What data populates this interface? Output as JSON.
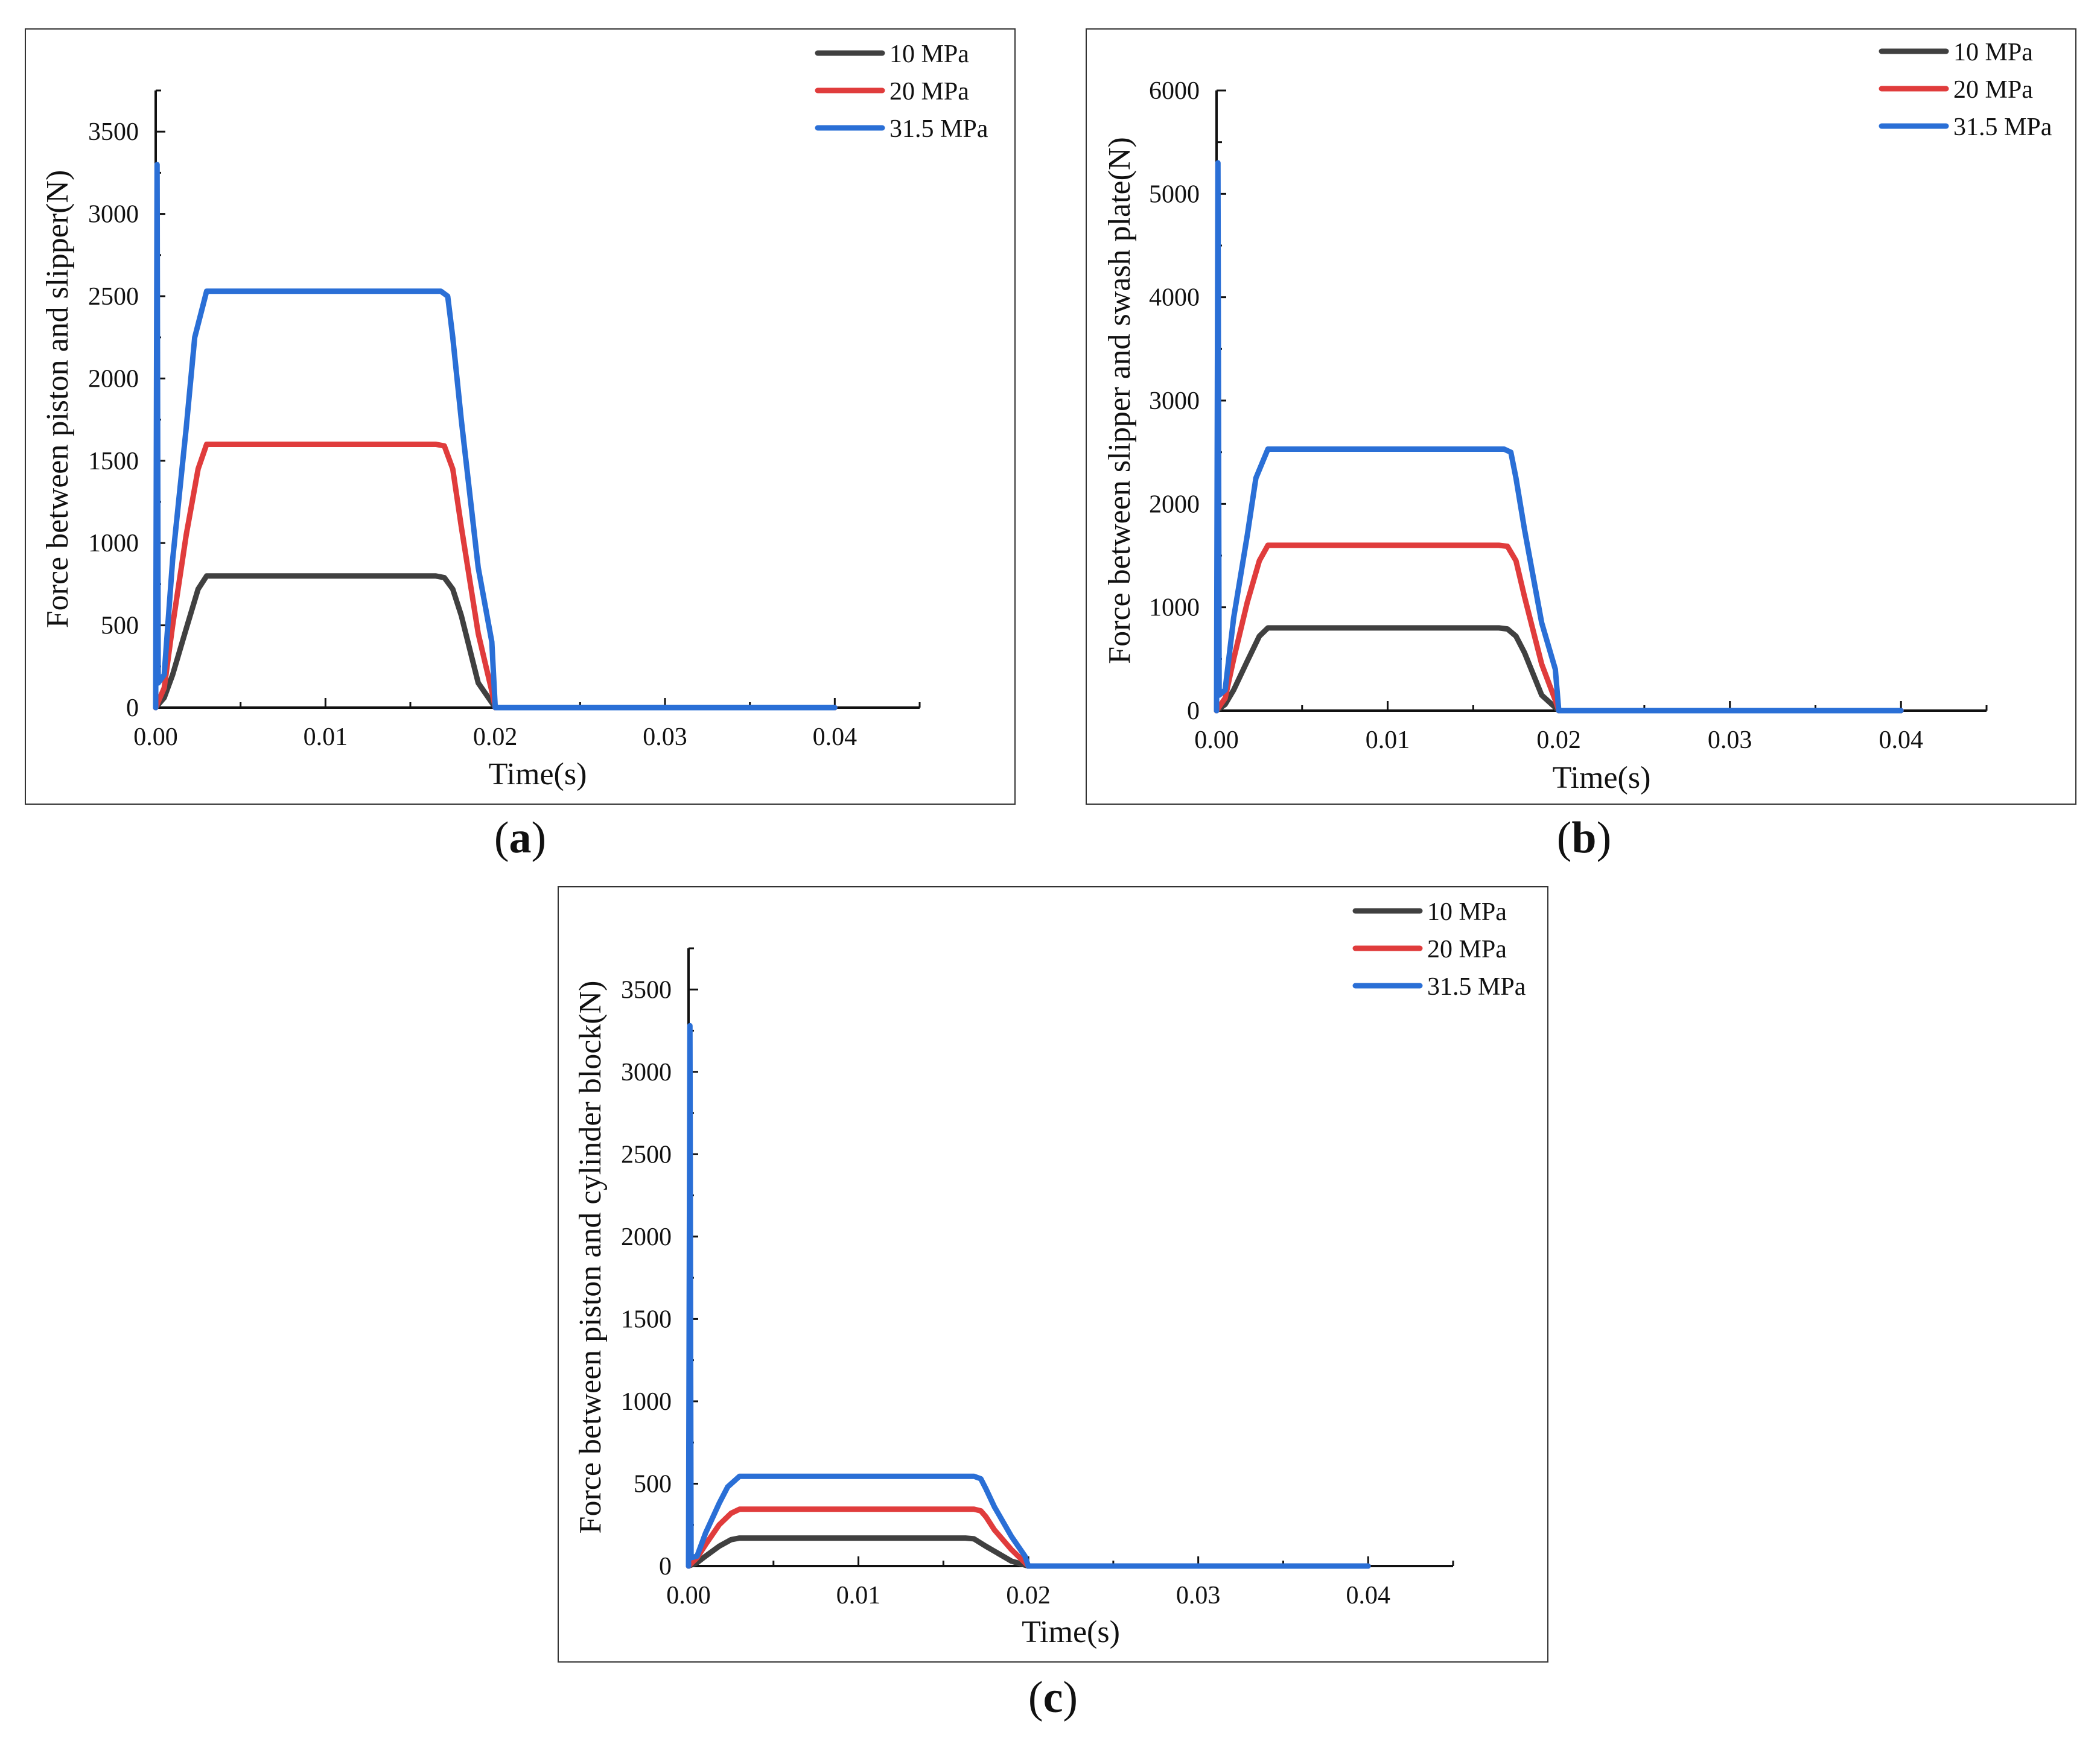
{
  "colors": {
    "10 MPa": "#404040",
    "20 MPa": "#e03c3c",
    "31.5 MPa": "#2a6fd6",
    "axis": "#111111",
    "frame": "#333333"
  },
  "chart_data": [
    {
      "panel": "a",
      "caption": {
        "open": "(",
        "letter": "a",
        "close": ")"
      },
      "type": "line",
      "title": "",
      "xlabel": "Time(s)",
      "ylabel": "Force between piston and slipper(N)",
      "xlim": [
        0,
        0.045
      ],
      "ylim": [
        0,
        3750
      ],
      "xticks": [
        0.0,
        0.01,
        0.02,
        0.03,
        0.04
      ],
      "xtick_labels": [
        "0.00",
        "0.01",
        "0.02",
        "0.03",
        "0.04"
      ],
      "yticks": [
        0,
        500,
        1000,
        1500,
        2000,
        2500,
        3000,
        3500
      ],
      "ytick_labels": [
        "0",
        "500",
        "1000",
        "1500",
        "2000",
        "2500",
        "3000",
        "3500"
      ],
      "legend": [
        "10 MPa",
        "20 MPa",
        "31.5 MPa"
      ],
      "legend_position": "top-right",
      "series": [
        {
          "name": "10 MPa",
          "x": [
            0,
            0.0005,
            0.001,
            0.0018,
            0.0025,
            0.003,
            0.005,
            0.0165,
            0.017,
            0.0175,
            0.018,
            0.019,
            0.02,
            0.04
          ],
          "y": [
            0,
            60,
            200,
            480,
            720,
            800,
            800,
            800,
            790,
            720,
            560,
            150,
            0,
            0
          ]
        },
        {
          "name": "20 MPa",
          "x": [
            0,
            0.0005,
            0.001,
            0.0018,
            0.0025,
            0.003,
            0.0165,
            0.017,
            0.0175,
            0.018,
            0.019,
            0.0198,
            0.02,
            0.04
          ],
          "y": [
            0,
            120,
            500,
            1050,
            1450,
            1600,
            1600,
            1590,
            1450,
            1100,
            450,
            100,
            0,
            0
          ]
        },
        {
          "name": "31.5 MPa",
          "x": [
            0,
            8e-05,
            0.00015,
            0.0005,
            0.001,
            0.0018,
            0.0023,
            0.003,
            0.0168,
            0.0172,
            0.0175,
            0.018,
            0.019,
            0.0198,
            0.02,
            0.04
          ],
          "y": [
            0,
            3300,
            150,
            200,
            900,
            1700,
            2250,
            2530,
            2530,
            2500,
            2250,
            1750,
            850,
            400,
            0,
            0
          ]
        }
      ]
    },
    {
      "panel": "b",
      "caption": {
        "open": "(",
        "letter": "b",
        "close": ")"
      },
      "type": "line",
      "title": "",
      "xlabel": "Time(s)",
      "ylabel": "Force between slipper and swash plate(N)",
      "xlim": [
        0,
        0.045
      ],
      "ylim": [
        0,
        6000
      ],
      "xticks": [
        0.0,
        0.01,
        0.02,
        0.03,
        0.04
      ],
      "xtick_labels": [
        "0.00",
        "0.01",
        "0.02",
        "0.03",
        "0.04"
      ],
      "yticks": [
        0,
        1000,
        2000,
        3000,
        4000,
        5000,
        6000
      ],
      "ytick_labels": [
        "0",
        "1000",
        "2000",
        "3000",
        "4000",
        "5000",
        "6000"
      ],
      "legend": [
        "10 MPa",
        "20 MPa",
        "31.5 MPa"
      ],
      "legend_position": "top-right",
      "series": [
        {
          "name": "10 MPa",
          "x": [
            0,
            0.0005,
            0.001,
            0.0018,
            0.0025,
            0.003,
            0.005,
            0.0165,
            0.017,
            0.0175,
            0.018,
            0.019,
            0.02,
            0.04
          ],
          "y": [
            0,
            60,
            200,
            480,
            720,
            800,
            800,
            800,
            790,
            720,
            560,
            150,
            0,
            0
          ]
        },
        {
          "name": "20 MPa",
          "x": [
            0,
            0.0005,
            0.001,
            0.0018,
            0.0025,
            0.003,
            0.0165,
            0.017,
            0.0175,
            0.018,
            0.019,
            0.0198,
            0.02,
            0.04
          ],
          "y": [
            0,
            120,
            500,
            1050,
            1450,
            1600,
            1600,
            1590,
            1450,
            1100,
            450,
            100,
            0,
            0
          ]
        },
        {
          "name": "31.5 MPa",
          "x": [
            0,
            8e-05,
            0.00015,
            0.0005,
            0.001,
            0.0018,
            0.0023,
            0.003,
            0.0168,
            0.0172,
            0.0175,
            0.018,
            0.019,
            0.0198,
            0.02,
            0.04
          ],
          "y": [
            0,
            5300,
            150,
            200,
            900,
            1700,
            2250,
            2530,
            2530,
            2500,
            2250,
            1750,
            850,
            400,
            0,
            0
          ]
        }
      ]
    },
    {
      "panel": "c",
      "caption": {
        "open": "(",
        "letter": "c",
        "close": ")"
      },
      "type": "line",
      "title": "",
      "xlabel": "Time(s)",
      "ylabel": "Force between piston and cylinder block(N)",
      "xlim": [
        0,
        0.045
      ],
      "ylim": [
        0,
        3750
      ],
      "xticks": [
        0.0,
        0.01,
        0.02,
        0.03,
        0.04
      ],
      "xtick_labels": [
        "0.00",
        "0.01",
        "0.02",
        "0.03",
        "0.04"
      ],
      "yticks": [
        0,
        500,
        1000,
        1500,
        2000,
        2500,
        3000,
        3500
      ],
      "ytick_labels": [
        "0",
        "500",
        "1000",
        "1500",
        "2000",
        "2500",
        "3000",
        "3500"
      ],
      "legend": [
        "10 MPa",
        "20 MPa",
        "31.5 MPa"
      ],
      "legend_position": "top-right",
      "series": [
        {
          "name": "10 MPa",
          "x": [
            0,
            0.0005,
            0.001,
            0.0018,
            0.0025,
            0.003,
            0.0163,
            0.0168,
            0.0175,
            0.018,
            0.019,
            0.02,
            0.04
          ],
          "y": [
            0,
            20,
            60,
            120,
            160,
            170,
            170,
            165,
            120,
            90,
            30,
            0,
            0
          ]
        },
        {
          "name": "20 MPa",
          "x": [
            0,
            0.0005,
            0.001,
            0.0018,
            0.0025,
            0.003,
            0.0168,
            0.0172,
            0.0175,
            0.018,
            0.019,
            0.0198,
            0.02,
            0.04
          ],
          "y": [
            0,
            50,
            130,
            250,
            320,
            345,
            345,
            335,
            300,
            220,
            100,
            20,
            0,
            0
          ]
        },
        {
          "name": "31.5 MPa",
          "x": [
            0,
            8e-05,
            0.00015,
            0.0005,
            0.001,
            0.0018,
            0.0023,
            0.003,
            0.0168,
            0.0172,
            0.0175,
            0.018,
            0.019,
            0.0198,
            0.02,
            0.04
          ],
          "y": [
            0,
            3280,
            50,
            60,
            200,
            380,
            480,
            545,
            545,
            530,
            470,
            360,
            180,
            60,
            0,
            0
          ]
        }
      ]
    }
  ]
}
